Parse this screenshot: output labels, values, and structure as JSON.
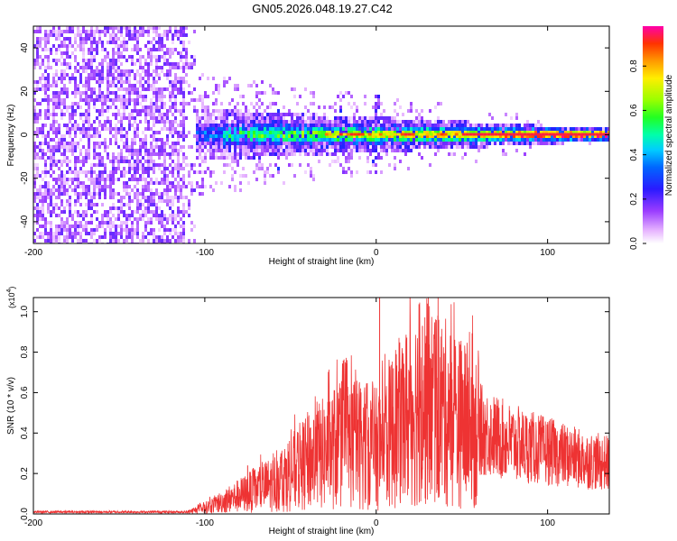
{
  "title": "GN05.2026.048.19.27.C42",
  "colors": {
    "snr_line": "#ee3333",
    "background": "#ffffff"
  },
  "chart_data": [
    {
      "type": "heatmap",
      "name": "spectrogram",
      "xlabel": "Height of straight line (km)",
      "ylabel": "Frequency (Hz)",
      "xlim": [
        -200,
        136
      ],
      "ylim": [
        -50,
        50
      ],
      "x_ticks": [
        -200,
        -100,
        0,
        100
      ],
      "x_tick_labels": [
        "-200",
        "-100",
        "0",
        "100"
      ],
      "y_ticks": [
        -40,
        -20,
        0,
        20,
        40
      ],
      "y_tick_labels": [
        "-40",
        "-20",
        "0",
        "20",
        "40"
      ],
      "description_regions": [
        {
          "x_range": [
            -200,
            -105
          ],
          "freq_range": [
            -50,
            50
          ],
          "amplitude": [
            0.0,
            0.2
          ],
          "pattern": "broadband noise"
        },
        {
          "x_range": [
            -120,
            136
          ],
          "freq_range": [
            -12,
            12
          ],
          "amplitude": [
            0.1,
            0.3
          ],
          "pattern": "narrowing band around 0 Hz"
        },
        {
          "x_range": [
            -90,
            136
          ],
          "freq_range": [
            -3,
            3
          ],
          "amplitude": [
            0.4,
            1.0
          ],
          "pattern": "strong centered line near 0 Hz"
        }
      ],
      "colorbar": {
        "label": "Normalized spectral amplitude",
        "range": [
          0.0,
          0.98
        ],
        "ticks": [
          0.0,
          0.2,
          0.4,
          0.6,
          0.8
        ],
        "tick_labels": [
          "0.0",
          "0.2",
          "0.4",
          "0.6",
          "0.8"
        ]
      }
    },
    {
      "type": "line",
      "name": "snr",
      "xlabel": "Height of straight line (km)",
      "ylabel": "SNR (10 * v/v)",
      "multiplier_label": "(x10",
      "multiplier_exponent": "4",
      "multiplier_close": ")",
      "xlim": [
        -200,
        136
      ],
      "ylim": [
        0,
        1.07
      ],
      "x_ticks": [
        -200,
        -100,
        0,
        100
      ],
      "x_tick_labels": [
        "-200",
        "-100",
        "0",
        "100"
      ],
      "y_ticks": [
        0.0,
        0.2,
        0.4,
        0.6,
        0.8,
        1.0
      ],
      "y_tick_labels": [
        "0.0",
        "0.2",
        "0.4",
        "0.6",
        "0.8",
        "1.0"
      ],
      "series": [
        {
          "name": "SNR",
          "envelope_x": [
            -200,
            -150,
            -110,
            -100,
            -90,
            -80,
            -70,
            -60,
            -50,
            -40,
            -30,
            -20,
            -10,
            0,
            10,
            20,
            25,
            30,
            40,
            50,
            60,
            70,
            80,
            90,
            100,
            110,
            120,
            136
          ],
          "envelope_y": [
            0.01,
            0.01,
            0.01,
            0.03,
            0.06,
            0.09,
            0.12,
            0.15,
            0.2,
            0.26,
            0.3,
            0.35,
            0.35,
            0.32,
            0.42,
            0.5,
            0.55,
            0.55,
            0.5,
            0.45,
            0.42,
            0.38,
            0.35,
            0.33,
            0.31,
            0.29,
            0.27,
            0.25
          ],
          "peaks": [
            {
              "x": 2,
              "y": 1.07
            },
            {
              "x": 10,
              "y": 0.72
            },
            {
              "x": 27,
              "y": 0.93
            },
            {
              "x": 30,
              "y": 1.04
            },
            {
              "x": 36,
              "y": 0.98
            },
            {
              "x": 44,
              "y": 0.75
            },
            {
              "x": -75,
              "y": 0.24
            },
            {
              "x": -40,
              "y": 0.48
            },
            {
              "x": -20,
              "y": 0.6
            }
          ]
        }
      ]
    }
  ]
}
